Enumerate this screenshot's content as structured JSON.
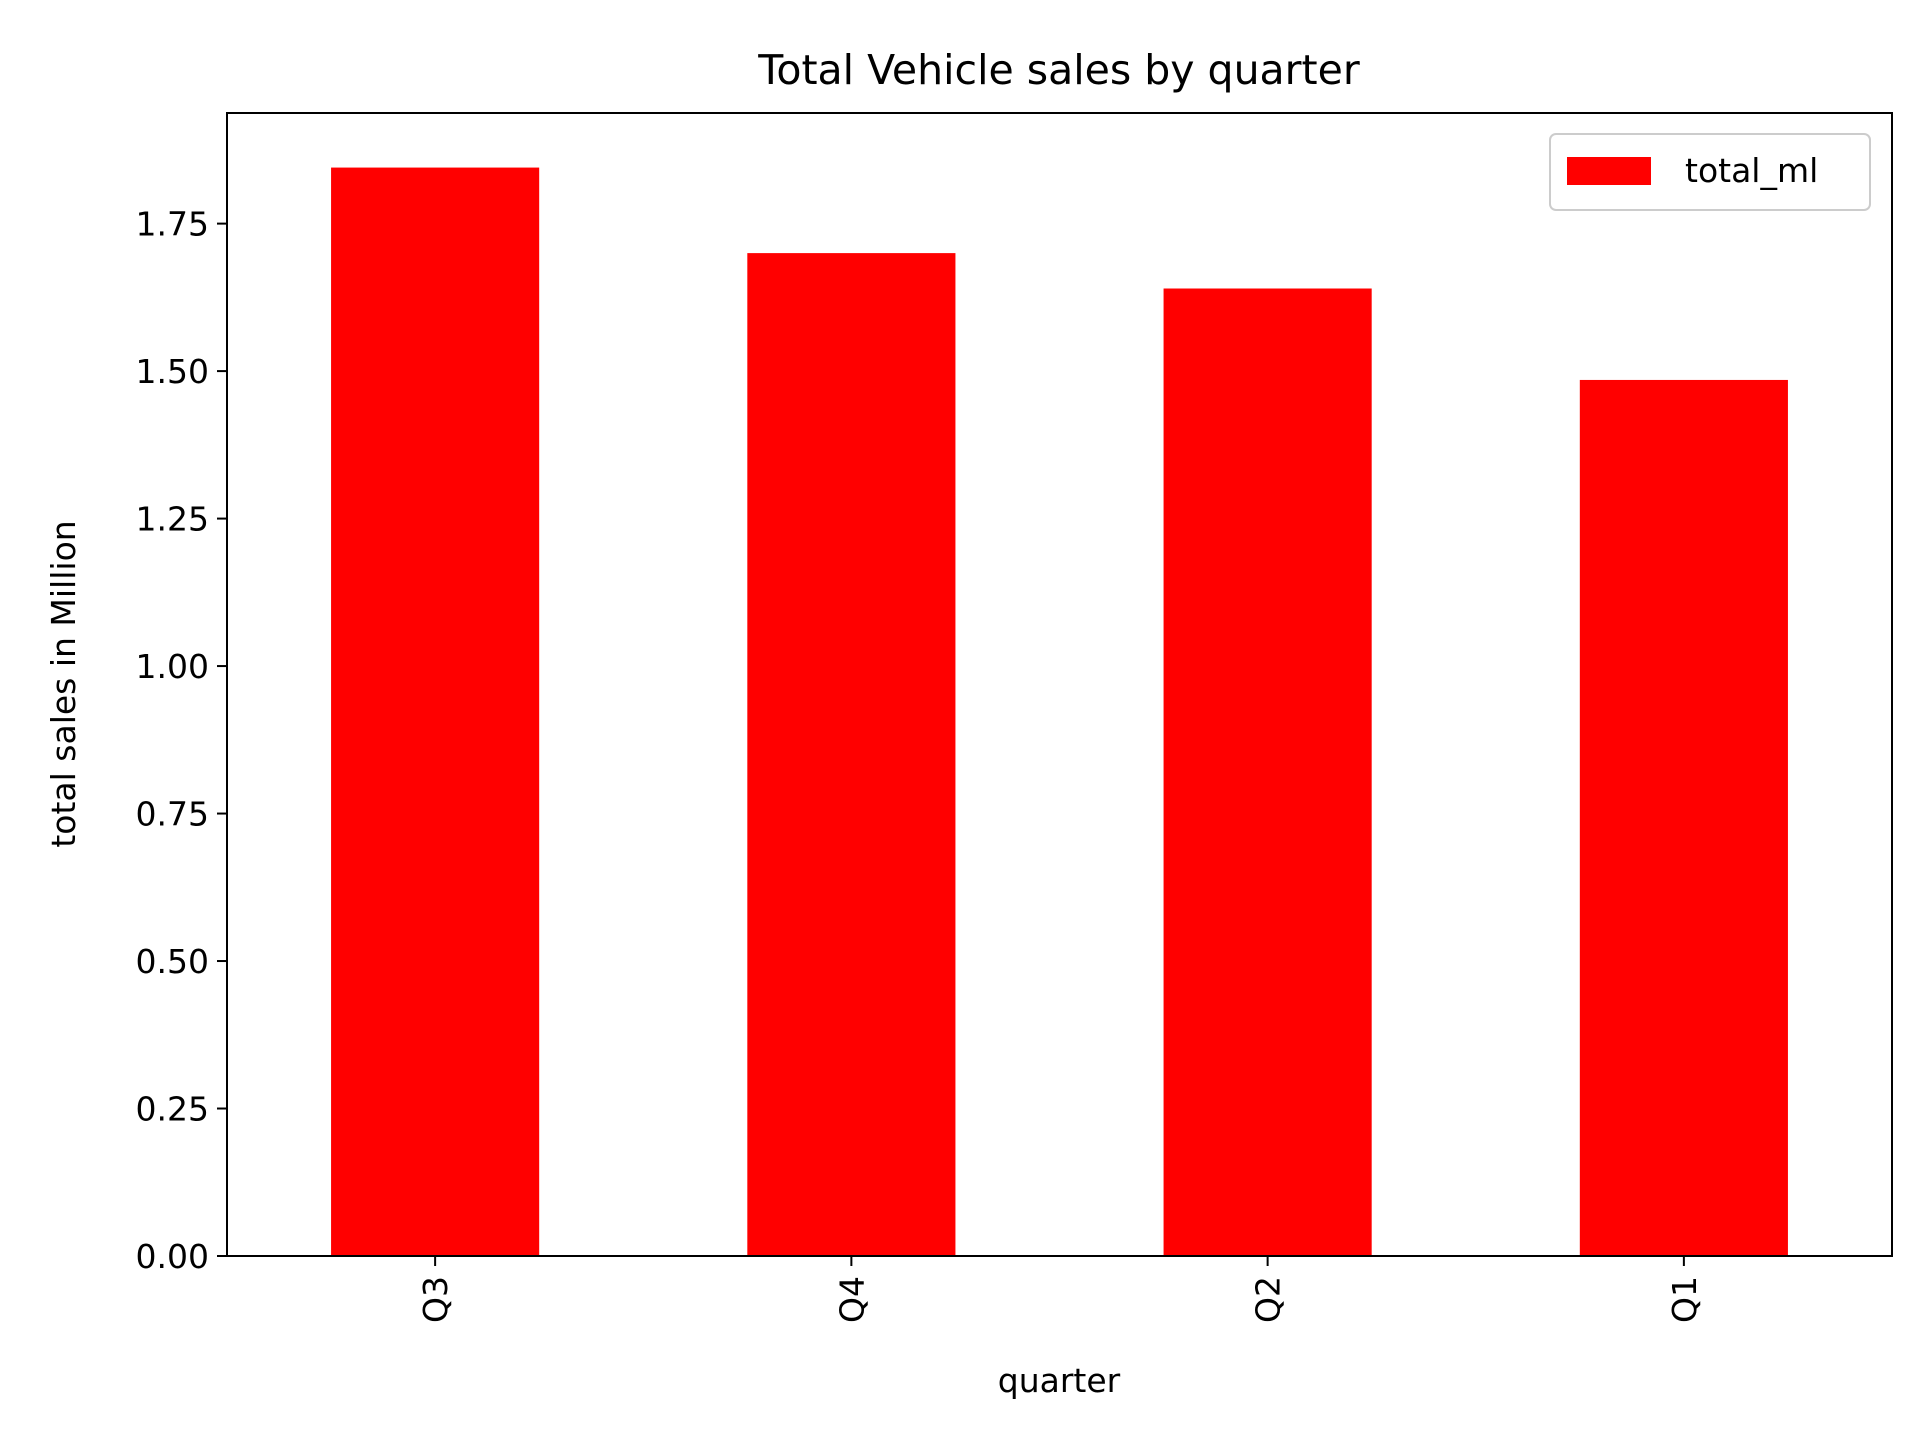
{
  "chart_data": {
    "type": "bar",
    "title": "Total Vehicle sales by quarter",
    "xlabel": "quarter",
    "ylabel": "total sales in Million",
    "categories": [
      "Q3",
      "Q4",
      "Q2",
      "Q1"
    ],
    "series": [
      {
        "name": "total_ml",
        "values": [
          1.845,
          1.7,
          1.64,
          1.485
        ],
        "color": "#ff0000"
      }
    ],
    "ylim": [
      0,
      1.9375
    ],
    "yticks": [
      0.0,
      0.25,
      0.5,
      0.75,
      1.0,
      1.25,
      1.5,
      1.75
    ],
    "ytick_labels": [
      "0.00",
      "0.25",
      "0.50",
      "0.75",
      "1.00",
      "1.25",
      "1.50",
      "1.75"
    ],
    "grid": false,
    "legend_position": "top-right"
  }
}
